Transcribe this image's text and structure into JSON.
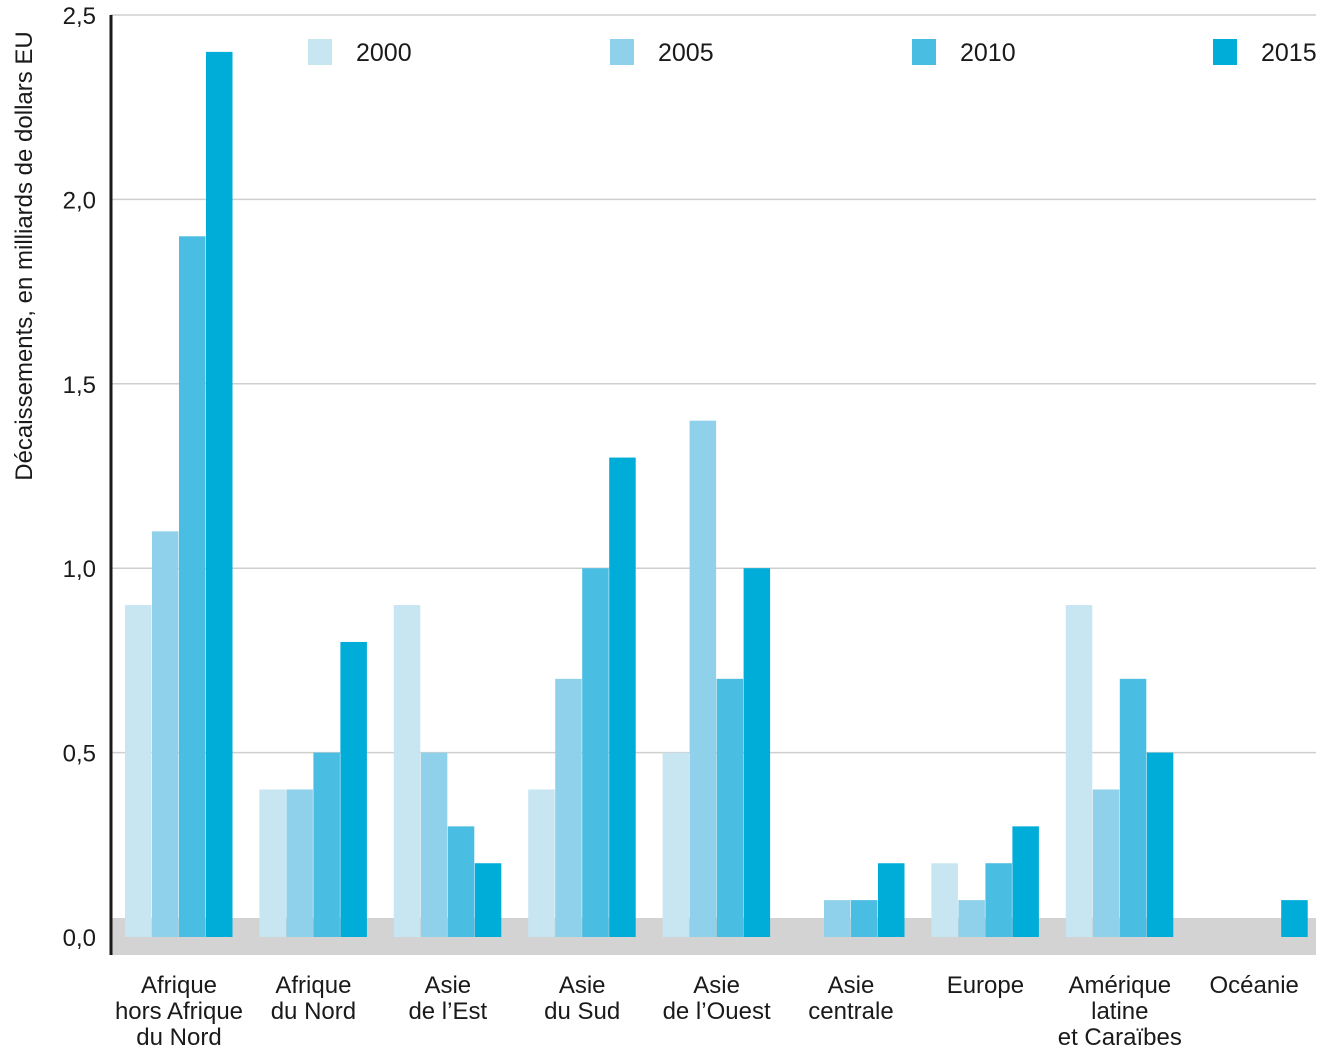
{
  "chart_data": {
    "type": "bar",
    "title": "",
    "ylabel": "Décaissements, en milliards de dollars EU",
    "xlabel": "",
    "ylim": [
      0,
      2.5
    ],
    "yticks": [
      "0,0",
      "0,5",
      "1,0",
      "1,5",
      "2,0",
      "2,5"
    ],
    "grid": true,
    "legend_position": "top",
    "categories": [
      [
        "Afrique",
        "hors Afrique",
        "du Nord"
      ],
      [
        "Afrique",
        "du Nord"
      ],
      [
        "Asie",
        "de l’Est"
      ],
      [
        "Asie",
        "du Sud"
      ],
      [
        "Asie",
        "de l’Ouest"
      ],
      [
        "Asie",
        "centrale"
      ],
      [
        "Europe"
      ],
      [
        "Amérique",
        "latine",
        "et Caraïbes"
      ],
      [
        "Océanie"
      ]
    ],
    "series": [
      {
        "name": "2000",
        "color": "#c7e6f1",
        "values": [
          0.9,
          0.4,
          0.9,
          0.4,
          0.5,
          0.0,
          0.2,
          0.9,
          0.0
        ]
      },
      {
        "name": "2005",
        "color": "#8fd0ea",
        "values": [
          1.1,
          0.4,
          0.5,
          0.7,
          1.4,
          0.1,
          0.1,
          0.4,
          0.0
        ]
      },
      {
        "name": "2010",
        "color": "#4abde2",
        "values": [
          1.9,
          0.5,
          0.3,
          1.0,
          0.7,
          0.1,
          0.2,
          0.7,
          0.0
        ]
      },
      {
        "name": "2015",
        "color": "#00acd8",
        "values": [
          2.4,
          0.8,
          0.2,
          1.3,
          1.0,
          0.2,
          0.3,
          0.5,
          0.1
        ]
      }
    ],
    "baseline_band_color": "#d3d3d3",
    "grid_color": "#cfcfcf",
    "axis_color": "#1a1a1a"
  }
}
